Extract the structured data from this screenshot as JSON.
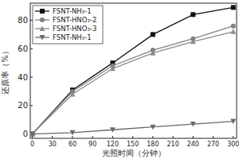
{
  "chart_data": {
    "type": "line",
    "x_label": "光照时间（分钟）",
    "y_label": "还原率（%）",
    "x": [
      0,
      60,
      120,
      180,
      240,
      300
    ],
    "xlim": [
      -3,
      305
    ],
    "xticks": [
      0,
      30,
      60,
      90,
      120,
      150,
      180,
      210,
      240,
      270,
      300
    ],
    "ylim": [
      -3,
      92
    ],
    "yticks": [
      0,
      20,
      40,
      60,
      80
    ],
    "grid": false,
    "legend": "upper left",
    "series": [
      {
        "name": "FSNT-NH₃-1",
        "color": "#111111",
        "marker": "square",
        "values": [
          0,
          31,
          50,
          70,
          84,
          89
        ]
      },
      {
        "name": "FSNT-HNO₃-2",
        "color": "#808080",
        "marker": "circle",
        "values": [
          0,
          30,
          48,
          59,
          67,
          76
        ]
      },
      {
        "name": "FSNT-HNO₃-3",
        "color": "#8c8c8c",
        "marker": "triangle-up",
        "values": [
          0,
          28,
          46,
          57,
          65,
          72
        ]
      },
      {
        "name": "FSNT-NH₃-1",
        "color": "#6a6a6a",
        "marker": "triangle-down",
        "values": [
          0,
          1,
          3,
          5,
          7,
          9
        ]
      }
    ]
  }
}
